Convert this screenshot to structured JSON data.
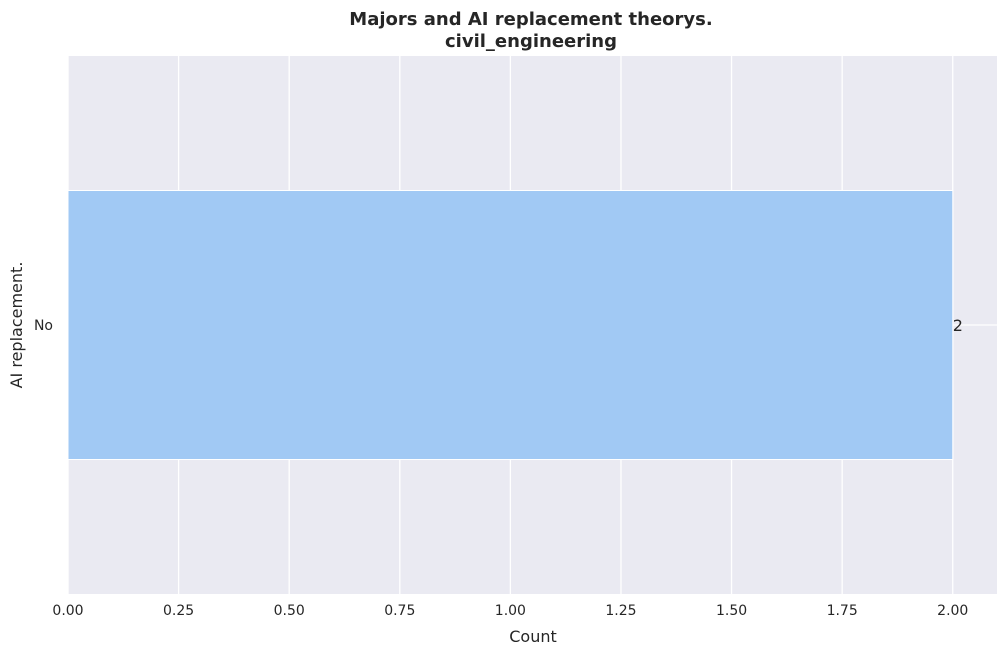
{
  "chart_data": {
    "type": "bar",
    "orientation": "horizontal",
    "title": "Majors and AI replacement theorys.",
    "subtitle": "civil_engineering",
    "xlabel": "Count",
    "ylabel": "AI replacement.",
    "categories": [
      "No"
    ],
    "values": [
      2
    ],
    "data_labels": [
      "2"
    ],
    "xlim": [
      0,
      2.1
    ],
    "x_ticks": [
      0.0,
      0.25,
      0.5,
      0.75,
      1.0,
      1.25,
      1.5,
      1.75,
      2.0
    ],
    "x_tick_labels": [
      "0.00",
      "0.25",
      "0.50",
      "0.75",
      "1.00",
      "1.25",
      "1.50",
      "1.75",
      "2.00"
    ],
    "grid": true,
    "colors": {
      "background": "#eaeaf2",
      "bar": "#a1c9f4",
      "grid": "#ffffff",
      "text": "#262626"
    }
  }
}
